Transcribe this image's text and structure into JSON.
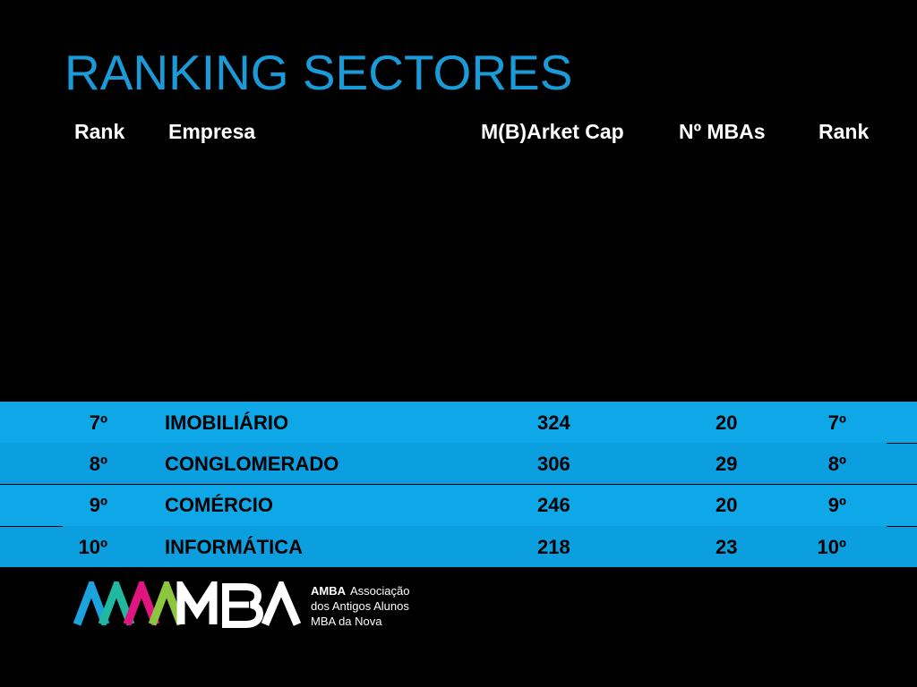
{
  "title": "RANKING SECTORES",
  "table": {
    "headers": {
      "rank": "Rank",
      "empresa": "Empresa",
      "market_cap": "M(B)Arket Cap",
      "mbas": "Nº MBAs",
      "rank2": "Rank"
    },
    "rows": [
      {
        "rank": "7º",
        "empresa": "IMOBILIÁRIO",
        "market_cap": "324",
        "mbas": "20",
        "rank2": "7º"
      },
      {
        "rank": "8º",
        "empresa": "CONGLOMERADO",
        "market_cap": "306",
        "mbas": "29",
        "rank2": "8º"
      },
      {
        "rank": "9º",
        "empresa": "COMÉRCIO",
        "market_cap": "246",
        "mbas": "20",
        "rank2": "9º"
      },
      {
        "rank": "10º",
        "empresa": "INFORMÁTICA",
        "market_cap": "218",
        "mbas": "23",
        "rank2": "10º"
      }
    ]
  },
  "logo": {
    "wordmark": "AMMBA",
    "name_bold": "AMBA",
    "line1": "Associação",
    "line2": "dos Antigos Alunos",
    "line3": "MBA da Nova"
  },
  "colors": {
    "title": "#1a9ad6",
    "band": "#0ea7e8",
    "logo_blue": "#1aa3df",
    "logo_teal": "#20b8a0",
    "logo_magenta": "#e0157f",
    "logo_green": "#8cc63f"
  }
}
